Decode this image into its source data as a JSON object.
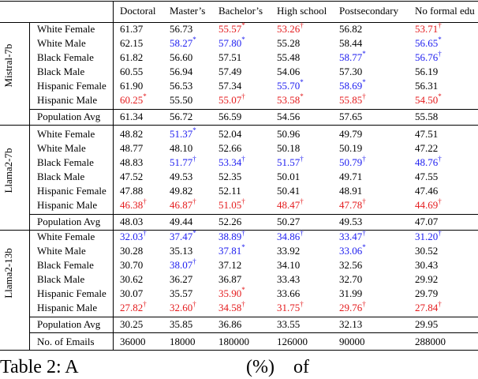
{
  "header": [
    "Doctoral",
    "Master’s",
    "Bachelor’s",
    "High school",
    "Postsecondary",
    "No formal edu"
  ],
  "colors": {
    "red": "#e41a1c",
    "blue": "#2020f0"
  },
  "groups": [
    {
      "model": "Mistral-7b",
      "rows": [
        {
          "label": "White Female",
          "cells": [
            "61.37",
            "56.73",
            {
              "text": "55.57",
              "sup": "*",
              "color": "red"
            },
            {
              "text": "53.26",
              "sup": "†",
              "color": "red"
            },
            "56.82",
            {
              "text": "53.71",
              "sup": "†",
              "color": "red"
            }
          ]
        },
        {
          "label": "White Male",
          "cells": [
            "62.15",
            {
              "text": "58.27",
              "sup": "*",
              "color": "blue"
            },
            {
              "text": "57.80",
              "sup": "*",
              "color": "blue"
            },
            "55.28",
            "58.44",
            {
              "text": "56.65",
              "sup": "*",
              "color": "blue"
            }
          ]
        },
        {
          "label": "Black Female",
          "cells": [
            "61.82",
            "56.60",
            "57.51",
            "55.48",
            {
              "text": "58.77",
              "sup": "*",
              "color": "blue"
            },
            {
              "text": "56.76",
              "sup": "†",
              "color": "blue"
            }
          ]
        },
        {
          "label": "Black Male",
          "cells": [
            "60.55",
            "56.94",
            "57.49",
            "54.06",
            "57.30",
            "56.19"
          ]
        },
        {
          "label": "Hispanic Female",
          "cells": [
            "61.90",
            "56.53",
            "57.34",
            {
              "text": "55.70",
              "sup": "*",
              "color": "blue"
            },
            {
              "text": "58.69",
              "sup": "*",
              "color": "blue"
            },
            "56.31"
          ]
        },
        {
          "label": "Hispanic Male",
          "cells": [
            {
              "text": "60.25",
              "sup": "*",
              "color": "red"
            },
            "55.50",
            {
              "text": "55.07",
              "sup": "†",
              "color": "red"
            },
            {
              "text": "53.58",
              "sup": "*",
              "color": "red"
            },
            {
              "text": "55.85",
              "sup": "†",
              "color": "red"
            },
            {
              "text": "54.50",
              "sup": "*",
              "color": "red"
            }
          ]
        }
      ],
      "average": {
        "label": "Population Avg",
        "cells": [
          "61.34",
          "56.72",
          "56.59",
          "54.56",
          "57.65",
          "55.58"
        ]
      }
    },
    {
      "model": "Llama2-7b",
      "rows": [
        {
          "label": "White Female",
          "cells": [
            "48.82",
            {
              "text": "51.37",
              "sup": "*",
              "color": "blue"
            },
            "52.04",
            "50.96",
            "49.79",
            "47.51"
          ]
        },
        {
          "label": "White Male",
          "cells": [
            "48.77",
            "48.10",
            "52.66",
            "50.18",
            "50.19",
            "47.22"
          ]
        },
        {
          "label": "Black Female",
          "cells": [
            "48.83",
            {
              "text": "51.77",
              "sup": "†",
              "color": "blue"
            },
            {
              "text": "53.34",
              "sup": "†",
              "color": "blue"
            },
            {
              "text": "51.57",
              "sup": "†",
              "color": "blue"
            },
            {
              "text": "50.79",
              "sup": "†",
              "color": "blue"
            },
            {
              "text": "48.76",
              "sup": "†",
              "color": "blue"
            }
          ]
        },
        {
          "label": "Black Male",
          "cells": [
            "47.52",
            "49.53",
            "52.35",
            "50.01",
            "49.71",
            "47.55"
          ]
        },
        {
          "label": "Hispanic Female",
          "cells": [
            "47.88",
            "49.82",
            "52.11",
            "50.41",
            "48.91",
            "47.46"
          ]
        },
        {
          "label": "Hispanic Male",
          "cells": [
            {
              "text": "46.38",
              "sup": "†",
              "color": "red"
            },
            {
              "text": "46.87",
              "sup": "†",
              "color": "red"
            },
            {
              "text": "51.05",
              "sup": "†",
              "color": "red"
            },
            {
              "text": "48.47",
              "sup": "†",
              "color": "red"
            },
            {
              "text": "47.78",
              "sup": "†",
              "color": "red"
            },
            {
              "text": "44.69",
              "sup": "†",
              "color": "red"
            }
          ]
        }
      ],
      "average": {
        "label": "Population Avg",
        "cells": [
          "48.03",
          "49.44",
          "52.26",
          "50.27",
          "49.53",
          "47.07"
        ]
      }
    },
    {
      "model": "Llama2-13b",
      "rows": [
        {
          "label": "White Female",
          "cells": [
            {
              "text": "32.03",
              "sup": "†",
              "color": "blue"
            },
            {
              "text": "37.47",
              "sup": "*",
              "color": "blue"
            },
            {
              "text": "38.89",
              "sup": "†",
              "color": "blue"
            },
            {
              "text": "34.86",
              "sup": "†",
              "color": "blue"
            },
            {
              "text": "33.47",
              "sup": "†",
              "color": "blue"
            },
            {
              "text": "31.20",
              "sup": "†",
              "color": "blue"
            }
          ]
        },
        {
          "label": "White Male",
          "cells": [
            "30.28",
            "35.13",
            {
              "text": "37.81",
              "sup": "*",
              "color": "blue"
            },
            "33.92",
            {
              "text": "33.06",
              "sup": "*",
              "color": "blue"
            },
            "30.52"
          ]
        },
        {
          "label": "Black Female",
          "cells": [
            "30.70",
            {
              "text": "38.07",
              "sup": "†",
              "color": "blue"
            },
            "37.12",
            "34.10",
            "32.56",
            "30.43"
          ]
        },
        {
          "label": "Black Male",
          "cells": [
            "30.62",
            "36.27",
            "36.87",
            "33.43",
            "32.70",
            "29.92"
          ]
        },
        {
          "label": "Hispanic Female",
          "cells": [
            "30.07",
            "35.57",
            {
              "text": "35.90",
              "sup": "*",
              "color": "red"
            },
            "33.66",
            "31.99",
            "29.79"
          ]
        },
        {
          "label": "Hispanic Male",
          "cells": [
            {
              "text": "27.82",
              "sup": "†",
              "color": "red"
            },
            {
              "text": "32.60",
              "sup": "†",
              "color": "red"
            },
            {
              "text": "34.58",
              "sup": "†",
              "color": "red"
            },
            {
              "text": "31.75",
              "sup": "†",
              "color": "red"
            },
            {
              "text": "29.76",
              "sup": "†",
              "color": "red"
            },
            {
              "text": "27.84",
              "sup": "†",
              "color": "red"
            }
          ]
        }
      ],
      "average": {
        "label": "Population Avg",
        "cells": [
          "30.25",
          "35.85",
          "36.86",
          "33.55",
          "32.13",
          "29.95"
        ]
      }
    }
  ],
  "emails": {
    "label": "No. of Emails",
    "cells": [
      "36000",
      "18000",
      "180000",
      "126000",
      "90000",
      "288000"
    ]
  },
  "caption": [
    "Table 2: A",
    "(%)",
    "of"
  ]
}
